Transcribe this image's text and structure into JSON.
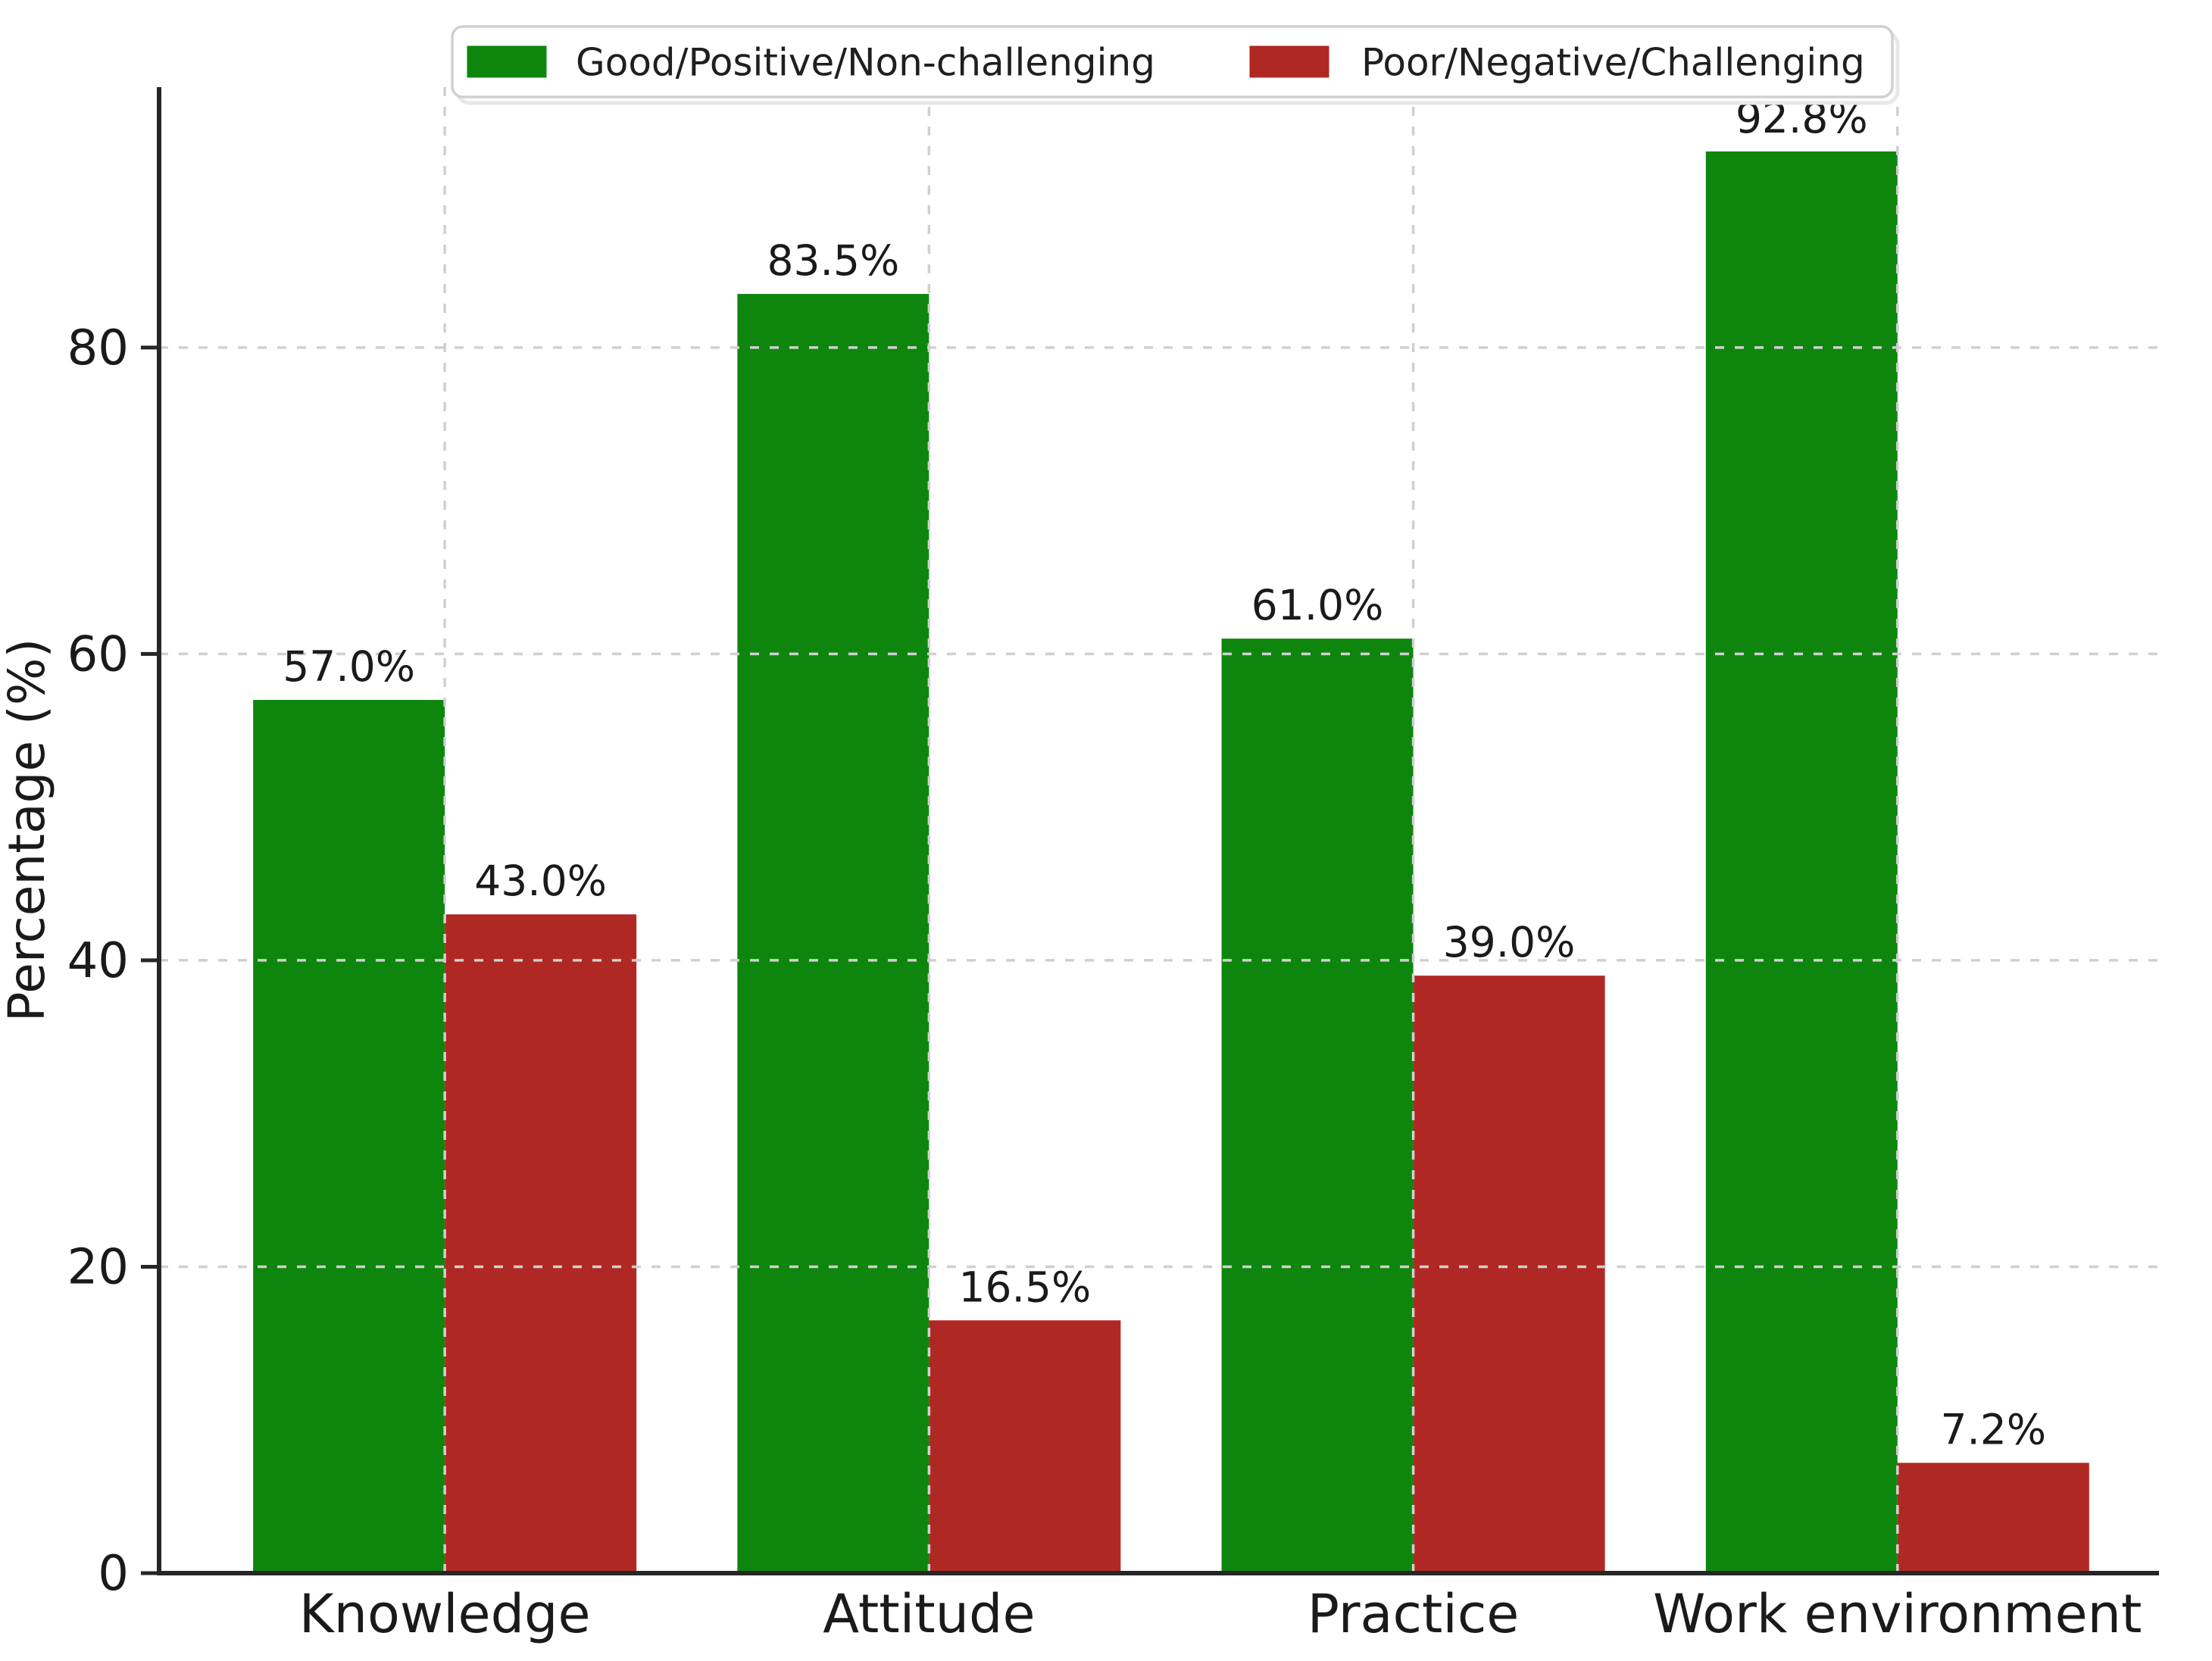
{
  "figure": {
    "kind": "matplotlib-style grouped bar chart",
    "background": "#ffffff"
  },
  "chart_data": {
    "type": "bar",
    "title": "",
    "categories": [
      "Knowledge",
      "Attitude",
      "Practice",
      "Work environment"
    ],
    "series": [
      {
        "name": "Good/Positive/Non-challenging",
        "color": "#0e860e",
        "values": [
          57.0,
          83.5,
          61.0,
          92.8
        ]
      },
      {
        "name": "Poor/Negative/Challenging",
        "color": "#b02823",
        "values": [
          43.0,
          16.5,
          39.0,
          7.2
        ]
      }
    ],
    "value_labels": {
      "decimals": 1,
      "suffix": "%"
    },
    "xlabel": "",
    "ylabel": "Percentage (%)",
    "yticks": [
      0,
      20,
      40,
      60,
      80
    ],
    "ylim": [
      0,
      97
    ],
    "grid": {
      "horizontal": true,
      "vertical": true,
      "style": "dashed",
      "on_top_of_bars": true
    },
    "legend": {
      "position": "top-center",
      "entries": [
        "Good/Positive/Non-challenging",
        "Poor/Negative/Challenging"
      ]
    }
  },
  "colors": {
    "grid": "#d0d0d0",
    "axis": "#262626",
    "text": "#1a1a1a",
    "legend_border": "#d0d0d0",
    "legend_shadow": "#e8e8e8",
    "background": "#ffffff"
  }
}
